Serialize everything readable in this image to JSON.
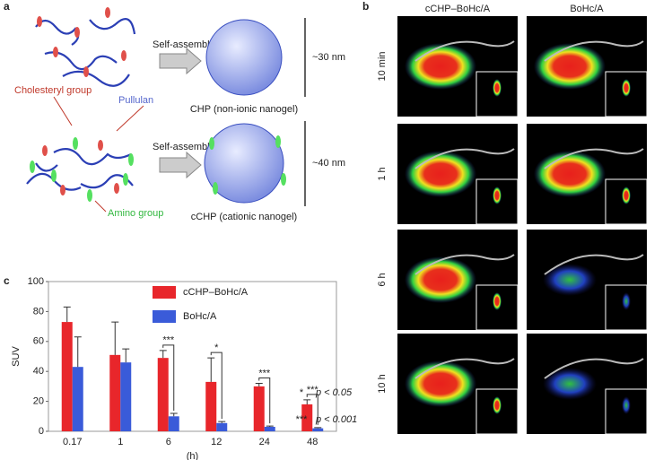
{
  "panel_a": {
    "label": "a",
    "self_assembly_top": "Self-assembly",
    "size_top": "~30 nm",
    "chp_caption": "CHP (non-ionic nanogel)",
    "cholesteryl_label": "Cholesteryl group",
    "pullulan_label": "Pullulan",
    "self_assembly_bottom": "Self-assembly",
    "size_bottom": "~40 nm",
    "amino_label": "Amino group",
    "cchp_caption": "cCHP (cationic nanogel)"
  },
  "panel_b": {
    "label": "b",
    "columns": [
      "cCHP–BoHc/A",
      "BoHc/A"
    ],
    "rows": [
      "10 min",
      "1 h",
      "6 h",
      "10 h"
    ]
  },
  "panel_c_label": "c",
  "chart_data": {
    "type": "bar",
    "ylabel": "SUV",
    "xlabel": "(h)",
    "categories": [
      "0.17",
      "1",
      "6",
      "12",
      "24",
      "48"
    ],
    "series": [
      {
        "name": "cCHP–BoHc/A",
        "color": "#e8262b",
        "values": [
          73,
          51,
          49,
          33,
          30,
          18
        ],
        "errors": [
          10,
          22,
          5,
          16,
          2,
          3
        ]
      },
      {
        "name": "BoHc/A",
        "color": "#3a5bd9",
        "values": [
          43,
          46,
          10,
          5.5,
          3,
          2
        ],
        "errors": [
          20,
          9,
          2,
          1,
          0.5,
          0.5
        ]
      }
    ],
    "ylim": [
      0,
      100
    ],
    "yticks": [
      0,
      20,
      40,
      60,
      80,
      100
    ],
    "significance": [
      null,
      null,
      "***",
      "*",
      "***",
      "***"
    ],
    "significance_legend": [
      {
        "symbol": "*",
        "text": "p < 0.05"
      },
      {
        "symbol": "***",
        "text": "p < 0.001"
      }
    ]
  }
}
